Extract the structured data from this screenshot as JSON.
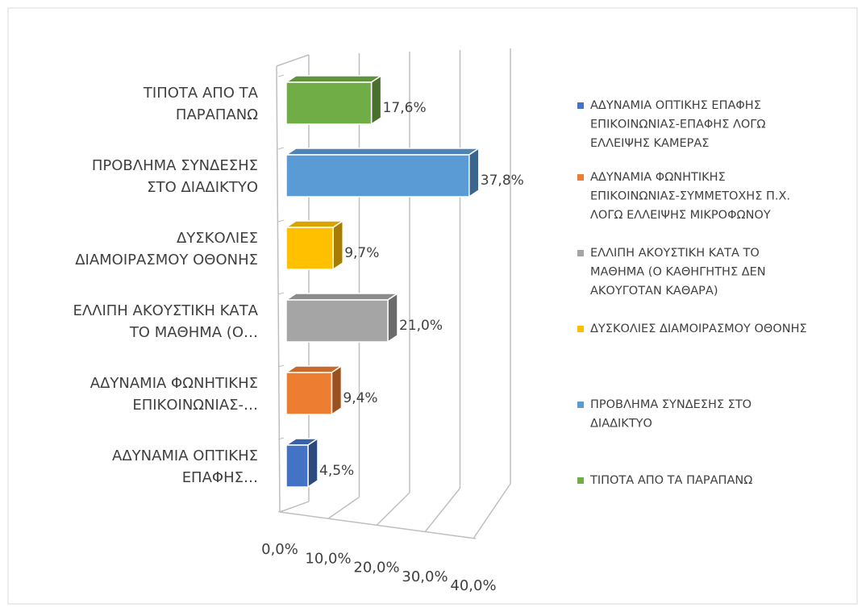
{
  "chart_data": {
    "type": "bar3d_horizontal",
    "categories": [
      [
        "ΑΔΥΝΑΜΙΑ ΟΠΤΙΚΗΣ",
        "ΕΠΑΦΗΣ…"
      ],
      [
        "ΑΔΥΝΑΜΙΑ ΦΩΝΗΤΙΚΗΣ",
        "ΕΠΙΚΟΙΝΩΝΙΑΣ-…"
      ],
      [
        "ΕΛΛΙΠΗ ΑΚΟΥΣΤΙΚΗ ΚΑΤΑ",
        "ΤΟ ΜΑΘΗΜΑ (Ο…"
      ],
      [
        "ΔΥΣΚΟΛΙΕΣ",
        "ΔΙΑΜΟΙΡΑΣΜΟΥ ΟΘΟΝΗΣ"
      ],
      [
        "ΠΡΟΒΛΗΜΑ ΣΥΝΔΕΣΗΣ",
        "ΣΤΟ ΔΙΑΔΙΚΤΥΟ"
      ],
      [
        "ΤΙΠΟΤΑ ΑΠΟ ΤΑ",
        "ΠΑΡΑΠΑΝΩ"
      ]
    ],
    "values": [
      4.5,
      9.4,
      21.0,
      9.7,
      37.8,
      17.6
    ],
    "value_labels": [
      "4,5%",
      "9,4%",
      "21,0%",
      "9,7%",
      "37,8%",
      "17,6%"
    ],
    "colors": [
      "#4472c4",
      "#ed7d31",
      "#a5a5a5",
      "#ffc000",
      "#5b9bd5",
      "#70ad47"
    ],
    "legend": [
      [
        "ΑΔΥΝΑΜΙΑ ΟΠΤΙΚΗΣ ΕΠΑΦΗΣ",
        "ΕΠΙΚΟΙΝΩΝΙΑΣ-ΕΠΑΦΗΣ ΛΟΓΩ",
        "ΕΛΛΕΙΨΗΣ ΚΑΜΕΡΑΣ"
      ],
      [
        "ΑΔΥΝΑΜΙΑ ΦΩΝΗΤΙΚΗΣ",
        "ΕΠΙΚΟΙΝΩΝΙΑΣ-ΣΥΜΜΕΤΟΧΗΣ Π.Χ.",
        "ΛΟΓΩ ΕΛΛΕΙΨΗΣ ΜΙΚΡΟΦΩΝΟΥ"
      ],
      [
        "ΕΛΛΙΠΗ ΑΚΟΥΣΤΙΚΗ ΚΑΤΑ ΤΟ",
        "ΜΑΘΗΜΑ (Ο ΚΑΘΗΓΗΤΗΣ ΔΕΝ",
        "ΑΚΟΥΓΟΤΑΝ ΚΑΘΑΡΑ)"
      ],
      [
        "ΔΥΣΚΟΛΙΕΣ ΔΙΑΜΟΙΡΑΣΜΟΥ ΟΘΟΝΗΣ"
      ],
      [
        "ΠΡΟΒΛΗΜΑ ΣΥΝΔΕΣΗΣ ΣΤΟ",
        "ΔΙΑΔΙΚΤΥΟ"
      ],
      [
        "ΤΙΠΟΤΑ ΑΠΟ ΤΑ ΠΑΡΑΠΑΝΩ"
      ]
    ],
    "xlim": [
      0,
      40
    ],
    "xticks": [
      {
        "value": 0,
        "label": "0,0%"
      },
      {
        "value": 10,
        "label": "10,0%"
      },
      {
        "value": 20,
        "label": "20,0%"
      },
      {
        "value": 30,
        "label": "30,0%"
      },
      {
        "value": 40,
        "label": "40,0%"
      }
    ],
    "grid": true
  }
}
